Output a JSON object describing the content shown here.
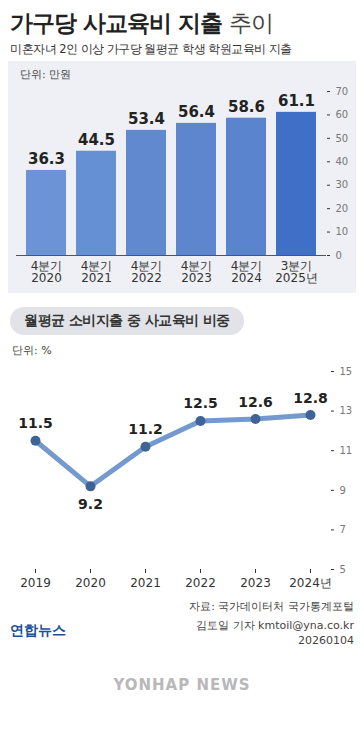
{
  "chart_data": [
    {
      "type": "bar",
      "title": "가구당 사교육비 지출 추이",
      "subtitle": "미혼자녀 2인 이상 가구당 월평균 학생 학원교육비 지출",
      "y_label": "단위: 만원",
      "categories": [
        "4분기\n2020",
        "4분기\n2021",
        "4분기\n2022",
        "4분기\n2023",
        "4분기\n2024",
        "3분기\n2025년"
      ],
      "values": [
        36.3,
        44.5,
        53.4,
        56.4,
        58.6,
        61.1
      ],
      "colors": [
        "#6b93d6",
        "#6690d4",
        "#6189d0",
        "#5e86cf",
        "#5b84ce",
        "#3f6fc6"
      ],
      "ylim": [
        0,
        70
      ],
      "yticks": [
        0,
        10,
        20,
        30,
        40,
        50,
        60,
        70
      ],
      "data_labels": true,
      "grid": false
    },
    {
      "type": "line",
      "title": "월평균 소비지출 중 사교육비 비중",
      "y_label": "단위: %",
      "categories": [
        "2019",
        "2020",
        "2021",
        "2022",
        "2023",
        "2024년"
      ],
      "values": [
        11.5,
        9.2,
        11.2,
        12.5,
        12.6,
        12.8
      ],
      "color": "#7499cf",
      "marker": "circle",
      "ylim": [
        5,
        15
      ],
      "yticks": [
        5,
        7,
        9,
        11,
        13,
        15
      ],
      "data_labels": true,
      "grid": false
    }
  ],
  "footer": {
    "source": "자료: 국가데이터처 국가통계포털",
    "publisher": "연합뉴스",
    "byline": "김토일 기자 kmtoil@yna.co.kr",
    "date": "20260104",
    "watermark": "YONHAP NEWS"
  }
}
